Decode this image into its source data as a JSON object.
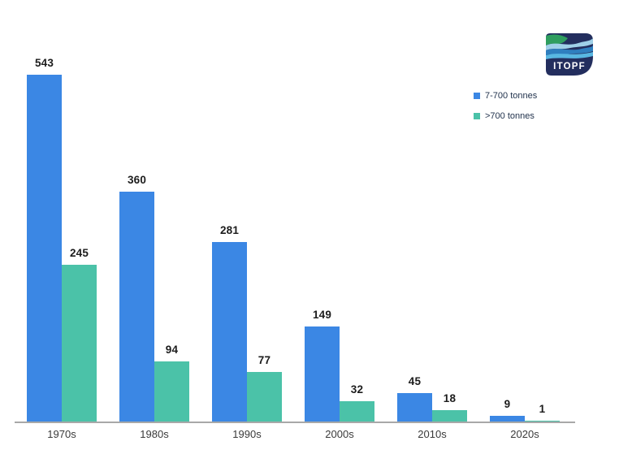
{
  "page": {
    "background": "#ffffff"
  },
  "logo": {
    "text": "ITOPF",
    "bg_color": "#232e5e",
    "wave_colors": {
      "green": "#2f9e5f",
      "pale_blue": "#9fd0e8",
      "mid_blue": "#2f7fbf",
      "light_blue": "#58b7e2"
    }
  },
  "legend": {
    "items": [
      {
        "label": "7-700 tonnes",
        "color": "#3b87e4"
      },
      {
        "label": ">700 tonnes",
        "color": "#4bc2a8"
      }
    ]
  },
  "chart_data": {
    "type": "bar",
    "categories": [
      "1970s",
      "1980s",
      "1990s",
      "2000s",
      "2010s",
      "2020s"
    ],
    "series": [
      {
        "name": "7-700 tonnes",
        "color": "#3b87e4",
        "values": [
          543,
          360,
          281,
          149,
          45,
          9
        ]
      },
      {
        "name": ">700 tonnes",
        "color": "#4bc2a8",
        "values": [
          245,
          94,
          77,
          32,
          18,
          1
        ]
      }
    ],
    "title": "",
    "xlabel": "",
    "ylabel": "",
    "ylim": [
      0,
      560
    ],
    "grid": false,
    "legend_position": "top-right",
    "value_labels": true,
    "axis_color": "#a8a8a8",
    "value_label_color": "#1c1c1c",
    "tick_label_color": "#3a3a3a"
  }
}
